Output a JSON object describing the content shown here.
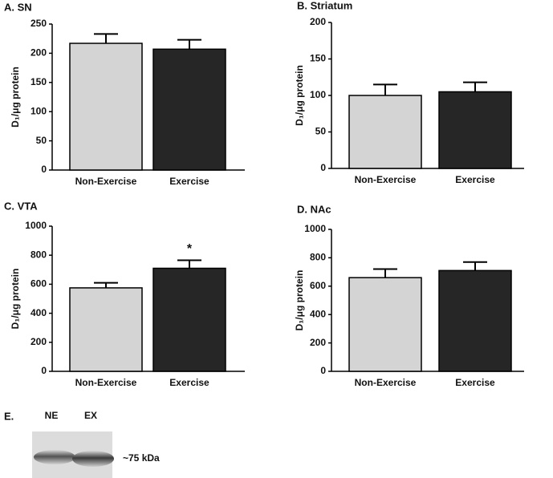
{
  "chart_data": [
    {
      "type": "bar",
      "title": "A. SN",
      "y_label": "D₁/μg protein",
      "categories": [
        "Non-Exercise",
        "Exercise"
      ],
      "values": [
        217,
        207
      ],
      "errors": [
        16,
        16
      ],
      "colors": [
        "#d4d4d4",
        "#262626"
      ],
      "ylim": [
        0,
        250
      ],
      "yticks": [
        0,
        50,
        100,
        150,
        200,
        250
      ]
    },
    {
      "type": "bar",
      "title": "B. Striatum",
      "y_label": "D₁/μg protein",
      "categories": [
        "Non-Exercise",
        "Exercise"
      ],
      "values": [
        100,
        105
      ],
      "errors": [
        15,
        13
      ],
      "colors": [
        "#d4d4d4",
        "#262626"
      ],
      "ylim": [
        0,
        200
      ],
      "yticks": [
        0,
        50,
        100,
        150,
        200
      ]
    },
    {
      "type": "bar",
      "title": "C. VTA",
      "y_label": "D₁/μg protein",
      "categories": [
        "Non-Exercise",
        "Exercise"
      ],
      "values": [
        575,
        710
      ],
      "errors": [
        35,
        55
      ],
      "colors": [
        "#d4d4d4",
        "#262626"
      ],
      "ylim": [
        0,
        1000
      ],
      "yticks": [
        0,
        200,
        400,
        600,
        800,
        1000
      ],
      "annotations": [
        {
          "text": "*",
          "x": "Exercise"
        }
      ]
    },
    {
      "type": "bar",
      "title": "D. NAc",
      "y_label": "D₁/μg protein",
      "categories": [
        "Non-Exercise",
        "Exercise"
      ],
      "values": [
        660,
        710
      ],
      "errors": [
        60,
        60
      ],
      "colors": [
        "#d4d4d4",
        "#262626"
      ],
      "ylim": [
        0,
        1000
      ],
      "yticks": [
        0,
        200,
        400,
        600,
        800,
        1000
      ]
    }
  ],
  "blot": {
    "title": "E.",
    "lanes": [
      "NE",
      "EX"
    ],
    "marker": "~75 kDa"
  }
}
